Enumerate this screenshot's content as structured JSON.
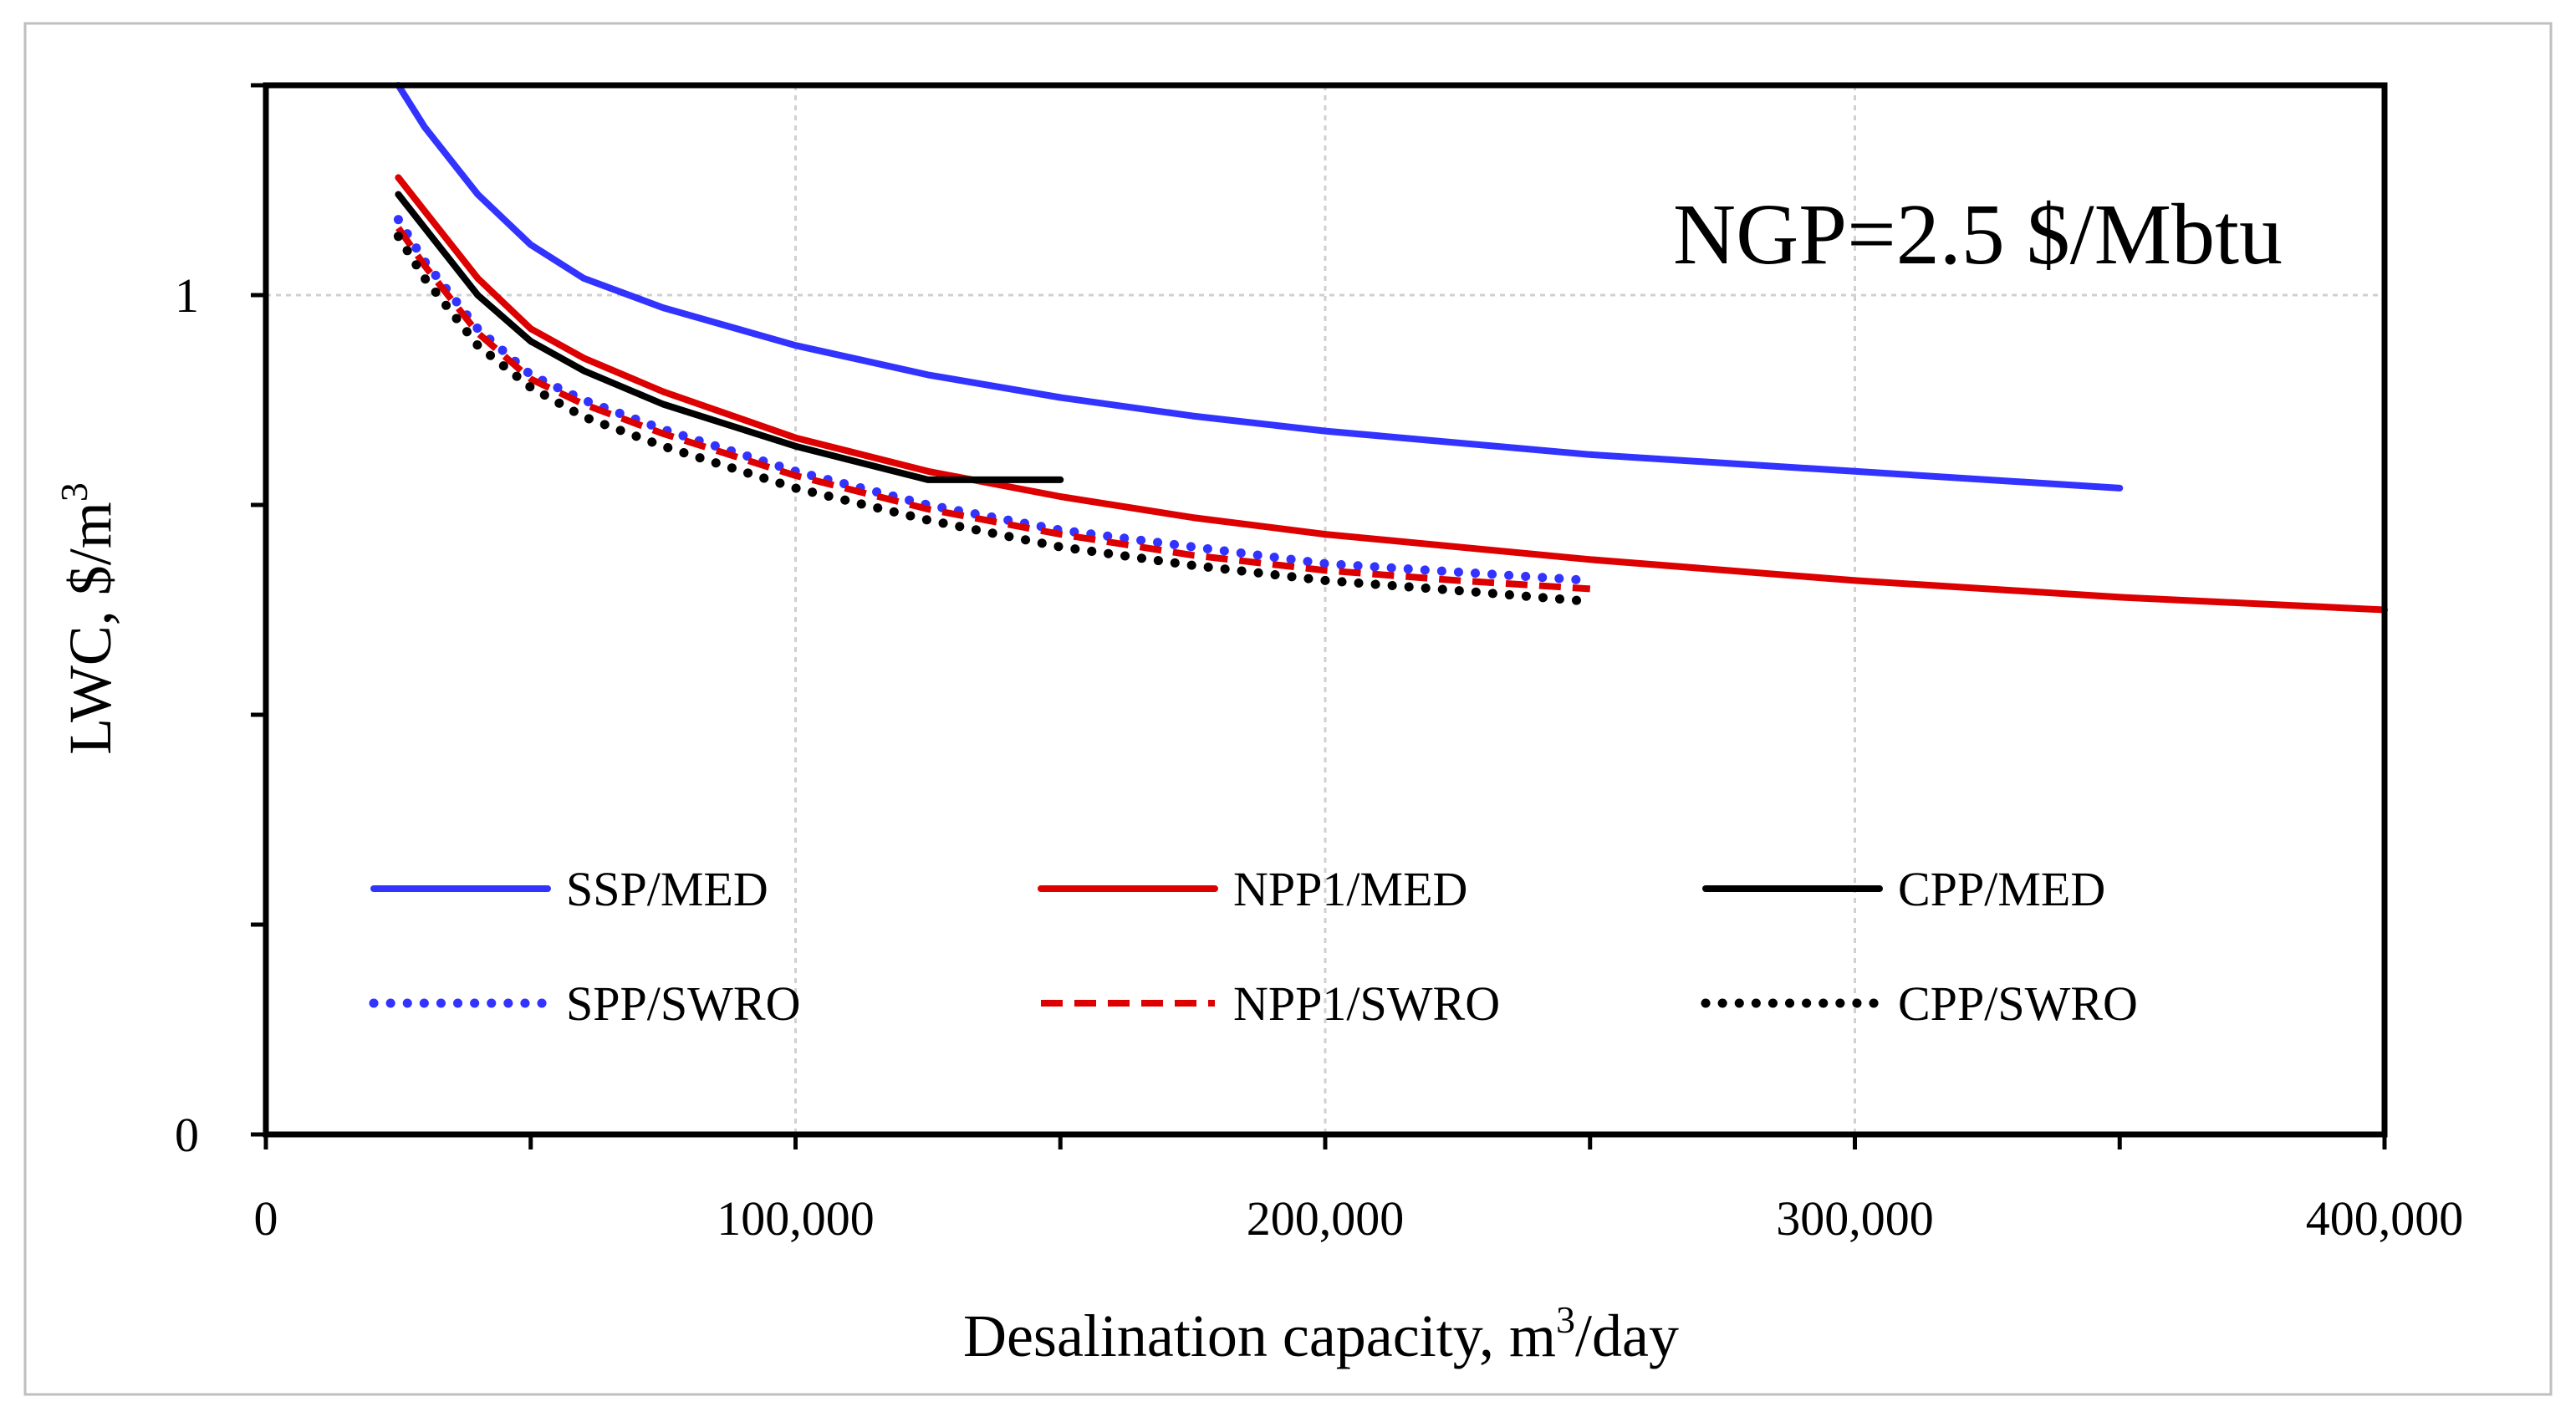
{
  "chart_data": {
    "type": "line",
    "title": "",
    "annotation": "NGP=2.5 $/Mbtu",
    "xlabel": "Desalination capacity, m",
    "xlabel_sup": "3",
    "xlabel_suffix": "/day",
    "ylabel": "LWC, $/m",
    "ylabel_sup": "3",
    "xlim": [
      0,
      400000
    ],
    "ylim": [
      0,
      1.25
    ],
    "x_ticks": [
      0,
      100000,
      200000,
      300000,
      400000
    ],
    "x_tick_labels": [
      "0",
      "100,000",
      "200,000",
      "300,000",
      "400,000"
    ],
    "y_ticks": [
      0,
      0.25,
      0.5,
      0.75,
      1.0,
      1.25
    ],
    "y_tick_labels": [
      "0",
      "",
      "",
      "",
      "1",
      ""
    ],
    "grid": true,
    "legend_position": "bottom",
    "series": [
      {
        "name": "SSP/MED",
        "color": "#3333ff",
        "style": "solid",
        "x": [
          25000,
          30000,
          40000,
          50000,
          60000,
          75000,
          100000,
          125000,
          150000,
          175000,
          200000,
          250000,
          300000,
          350000
        ],
        "values": [
          1.25,
          1.2,
          1.12,
          1.06,
          1.02,
          0.985,
          0.94,
          0.905,
          0.878,
          0.856,
          0.838,
          0.81,
          0.79,
          0.77
        ]
      },
      {
        "name": "NPP1/MED",
        "color": "#dd0000",
        "style": "solid",
        "x": [
          25000,
          30000,
          40000,
          50000,
          60000,
          75000,
          100000,
          125000,
          150000,
          175000,
          200000,
          250000,
          300000,
          350000,
          400000
        ],
        "values": [
          1.14,
          1.1,
          1.02,
          0.96,
          0.925,
          0.885,
          0.83,
          0.79,
          0.76,
          0.735,
          0.715,
          0.685,
          0.66,
          0.64,
          0.625
        ]
      },
      {
        "name": "CPP/MED",
        "color": "#000000",
        "style": "solid",
        "x": [
          25000,
          30000,
          40000,
          50000,
          60000,
          75000,
          100000,
          125000,
          150000
        ],
        "values": [
          1.12,
          1.08,
          1.0,
          0.945,
          0.91,
          0.87,
          0.82,
          0.78,
          0.78
        ]
      },
      {
        "name": "SPP/SWRO",
        "color": "#3333ff",
        "style": "dotted",
        "x": [
          25000,
          30000,
          40000,
          50000,
          60000,
          75000,
          100000,
          125000,
          150000,
          175000,
          200000,
          225000,
          250000
        ],
        "values": [
          1.09,
          1.04,
          0.96,
          0.905,
          0.875,
          0.84,
          0.79,
          0.75,
          0.72,
          0.7,
          0.68,
          0.67,
          0.66
        ]
      },
      {
        "name": "NPP1/SWRO",
        "color": "#dd0000",
        "style": "dashed",
        "x": [
          25000,
          30000,
          40000,
          50000,
          60000,
          75000,
          100000,
          125000,
          150000,
          175000,
          200000,
          225000,
          250000
        ],
        "values": [
          1.08,
          1.035,
          0.955,
          0.9,
          0.87,
          0.835,
          0.785,
          0.745,
          0.715,
          0.69,
          0.672,
          0.66,
          0.65
        ]
      },
      {
        "name": "CPP/SWRO",
        "color": "#000000",
        "style": "dotted",
        "x": [
          25000,
          30000,
          40000,
          50000,
          60000,
          75000,
          100000,
          125000,
          150000,
          175000,
          200000,
          225000,
          250000
        ],
        "values": [
          1.07,
          1.02,
          0.94,
          0.89,
          0.855,
          0.82,
          0.77,
          0.732,
          0.7,
          0.678,
          0.66,
          0.648,
          0.635
        ]
      }
    ]
  }
}
